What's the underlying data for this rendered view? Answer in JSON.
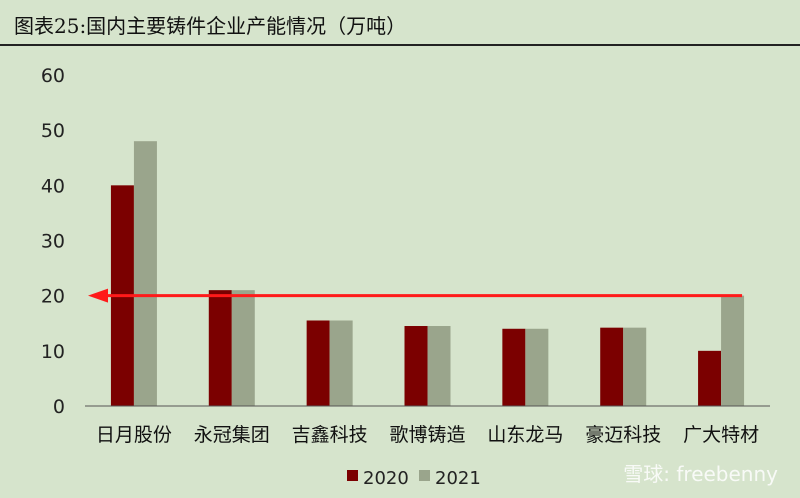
{
  "title": "图表25:国内主要铸件企业产能情况（万吨）",
  "watermark": "雪球: freebenny",
  "colors": {
    "series_2020": "#7b0000",
    "series_2021": "#9aa58c",
    "arrow": "#ff1a1a",
    "background": "#d6e4cc"
  },
  "chart_data": {
    "type": "bar",
    "title": "",
    "xlabel": "",
    "ylabel": "",
    "ylim": [
      0,
      60
    ],
    "yticks": [
      0,
      10,
      20,
      30,
      40,
      50,
      60
    ],
    "grid": false,
    "legend_position": "bottom",
    "categories": [
      "日月股份",
      "永冠集团",
      "吉鑫科技",
      "歌博铸造",
      "山东龙马",
      "豪迈科技",
      "广大特材"
    ],
    "series": [
      {
        "name": "2020",
        "values": [
          40,
          21,
          15.5,
          14.5,
          14,
          14.2,
          10
        ]
      },
      {
        "name": "2021",
        "values": [
          48,
          21,
          15.5,
          14.5,
          14,
          14.2,
          20
        ]
      }
    ],
    "annotation": {
      "type": "arrow",
      "value": 20,
      "from_category": "广大特材",
      "to": "y-axis"
    }
  }
}
